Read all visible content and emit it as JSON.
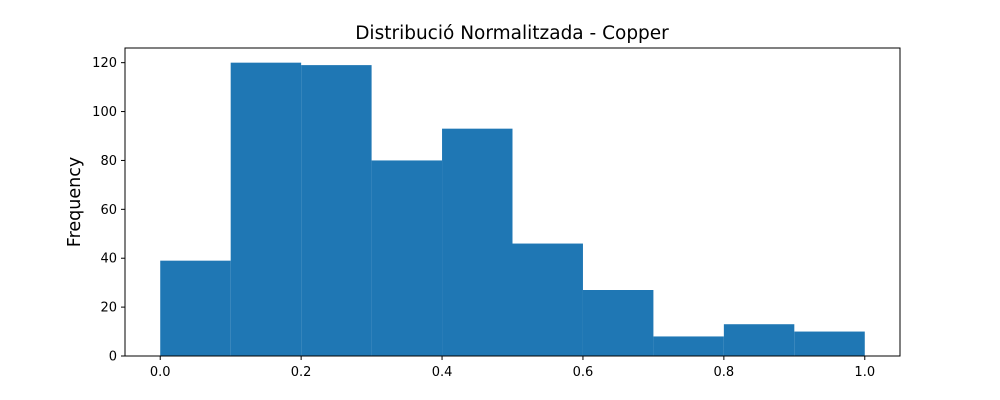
{
  "chart_data": {
    "type": "bar",
    "title": "Distribució Normalitzada - Copper",
    "xlabel": "",
    "ylabel": "Frequency",
    "bin_edges": [
      0.0,
      0.1,
      0.2,
      0.3,
      0.4,
      0.5,
      0.6,
      0.7,
      0.8,
      0.9,
      1.0
    ],
    "values": [
      39,
      120,
      119,
      80,
      93,
      46,
      27,
      8,
      13,
      10
    ],
    "xlim": [
      -0.05,
      1.05
    ],
    "ylim": [
      0,
      126
    ],
    "xticks": [
      0.0,
      0.2,
      0.4,
      0.6,
      0.8,
      1.0
    ],
    "xtick_labels": [
      "0.0",
      "0.2",
      "0.4",
      "0.6",
      "0.8",
      "1.0"
    ],
    "yticks": [
      0,
      20,
      40,
      60,
      80,
      100,
      120
    ],
    "ytick_labels": [
      "0",
      "20",
      "40",
      "60",
      "80",
      "100",
      "120"
    ],
    "bar_color": "#1f77b4",
    "grid": false,
    "legend": null
  }
}
